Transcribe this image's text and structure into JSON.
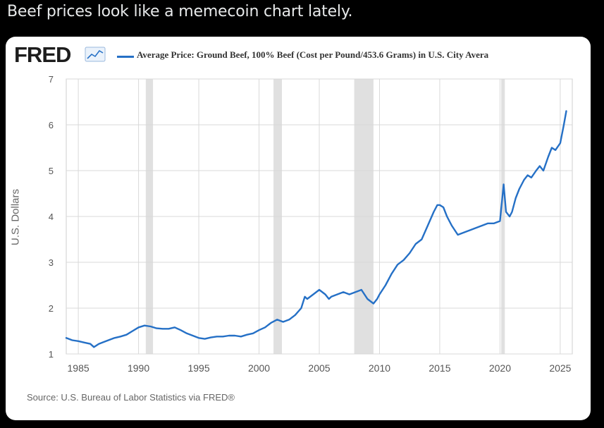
{
  "post": {
    "text": "Beef prices look like a memecoin chart lately."
  },
  "card": {
    "logo_text": "FRED",
    "logo_icon": "line-chart-icon",
    "source": "Source: U.S. Bureau of Labor Statistics via FRED®"
  },
  "colors": {
    "line": "#2570c6",
    "recession": "#e0e0e0",
    "grid": "#d9d9d9"
  },
  "chart_data": {
    "type": "line",
    "title": "",
    "xlabel": "",
    "ylabel": "U.S. Dollars",
    "xlim": [
      1984,
      2026
    ],
    "ylim": [
      1,
      7
    ],
    "x_ticks": [
      "1985",
      "1990",
      "1995",
      "2000",
      "2005",
      "2010",
      "2015",
      "2020",
      "2025"
    ],
    "y_ticks": [
      "1",
      "2",
      "3",
      "4",
      "5",
      "6",
      "7"
    ],
    "grid": true,
    "legend": "top-left",
    "recessions": [
      [
        1990.6,
        1991.2
      ],
      [
        2001.2,
        2001.9
      ],
      [
        2007.9,
        2009.5
      ],
      [
        2020.1,
        2020.4
      ]
    ],
    "series": [
      {
        "name": "Average Price: Ground Beef, 100% Beef (Cost per Pound/453.6 Grams) in U.S. City Avera",
        "x": [
          1984.0,
          1984.5,
          1985.0,
          1985.5,
          1986.0,
          1986.3,
          1986.7,
          1987.0,
          1987.5,
          1988.0,
          1988.5,
          1989.0,
          1989.5,
          1990.0,
          1990.5,
          1991.0,
          1991.5,
          1992.0,
          1992.5,
          1993.0,
          1993.5,
          1994.0,
          1994.5,
          1995.0,
          1995.5,
          1996.0,
          1996.5,
          1997.0,
          1997.5,
          1998.0,
          1998.5,
          1999.0,
          1999.5,
          2000.0,
          2000.5,
          2001.0,
          2001.5,
          2002.0,
          2002.5,
          2003.0,
          2003.5,
          2003.8,
          2004.0,
          2004.5,
          2005.0,
          2005.5,
          2005.8,
          2006.0,
          2006.5,
          2007.0,
          2007.5,
          2008.0,
          2008.5,
          2009.0,
          2009.5,
          2009.8,
          2010.0,
          2010.5,
          2011.0,
          2011.5,
          2012.0,
          2012.5,
          2013.0,
          2013.5,
          2014.0,
          2014.5,
          2014.8,
          2015.0,
          2015.3,
          2015.6,
          2016.0,
          2016.5,
          2017.0,
          2017.5,
          2018.0,
          2018.5,
          2019.0,
          2019.5,
          2020.0,
          2020.3,
          2020.5,
          2020.8,
          2021.0,
          2021.3,
          2021.6,
          2022.0,
          2022.3,
          2022.6,
          2023.0,
          2023.3,
          2023.6,
          2024.0,
          2024.3,
          2024.6,
          2025.0,
          2025.3,
          2025.5
        ],
        "values": [
          1.35,
          1.3,
          1.28,
          1.25,
          1.22,
          1.15,
          1.22,
          1.25,
          1.3,
          1.35,
          1.38,
          1.42,
          1.5,
          1.58,
          1.62,
          1.6,
          1.56,
          1.55,
          1.55,
          1.58,
          1.52,
          1.45,
          1.4,
          1.35,
          1.33,
          1.36,
          1.38,
          1.38,
          1.4,
          1.4,
          1.38,
          1.42,
          1.45,
          1.52,
          1.58,
          1.68,
          1.75,
          1.7,
          1.75,
          1.85,
          2.0,
          2.25,
          2.2,
          2.3,
          2.4,
          2.3,
          2.2,
          2.25,
          2.3,
          2.35,
          2.3,
          2.35,
          2.4,
          2.2,
          2.1,
          2.2,
          2.3,
          2.5,
          2.75,
          2.95,
          3.05,
          3.2,
          3.4,
          3.5,
          3.8,
          4.1,
          4.25,
          4.25,
          4.2,
          4.0,
          3.8,
          3.6,
          3.65,
          3.7,
          3.75,
          3.8,
          3.85,
          3.85,
          3.9,
          4.7,
          4.1,
          4.0,
          4.1,
          4.4,
          4.6,
          4.8,
          4.9,
          4.85,
          5.0,
          5.1,
          5.0,
          5.3,
          5.5,
          5.45,
          5.6,
          6.0,
          6.3
        ]
      }
    ]
  }
}
